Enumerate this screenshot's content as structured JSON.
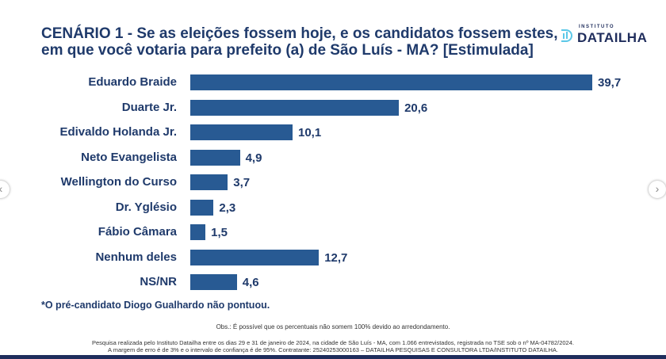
{
  "title_line1": "CENÁRIO 1 - Se as eleições fossem hoje, e os candidatos fossem estes,",
  "title_line2": "em que você votaria para prefeito (a) de São Luís - MA? [Estimulada]",
  "logo": {
    "small": "INSTITUTO",
    "big": "DATAILHA"
  },
  "chart_data": {
    "type": "bar",
    "orientation": "horizontal",
    "title": "CENÁRIO 1 - Se as eleições fossem hoje, e os candidatos fossem estes, em que você votaria para prefeito (a) de São Luís - MA? [Estimulada]",
    "categories": [
      "Eduardo Braide",
      "Duarte Jr.",
      "Edivaldo Holanda Jr.",
      "Neto Evangelista",
      "Wellington do Curso",
      "Dr. Yglésio",
      "Fábio Câmara",
      "Nenhum deles",
      "NS/NR"
    ],
    "values": [
      39.7,
      20.6,
      10.1,
      4.9,
      3.7,
      2.3,
      1.5,
      12.7,
      4.6
    ],
    "labels": [
      "39,7",
      "20,6",
      "10,1",
      "4,9",
      "3,7",
      "2,3",
      "1,5",
      "12,7",
      "4,6"
    ],
    "xlim": [
      0,
      40
    ],
    "bar_color": "#285a93"
  },
  "note": "*O pré-candidato Diogo Gualhardo não pontuou.",
  "obs": "Obs.: É possível que os percentuais não somem 100% devido ao arredondamento.",
  "footer_line1": "Pesquisa realizada pelo Instituto Datailha entre os dias 29 e 31 de janeiro de 2024, na cidade de São Luís - MA, com 1.066 entrevistados, registrada no TSE sob o nº MA-04782/2024.",
  "footer_line2": "A margem de erro é de 3% e o intervalo de confiança é de 95%.  Contratante: 25240253000163 – DATAILHA PESQUISAS E CONSULTORA LTDA/INSTITUTO DATAILHA.",
  "nav": {
    "prev": "‹",
    "next": "›"
  }
}
